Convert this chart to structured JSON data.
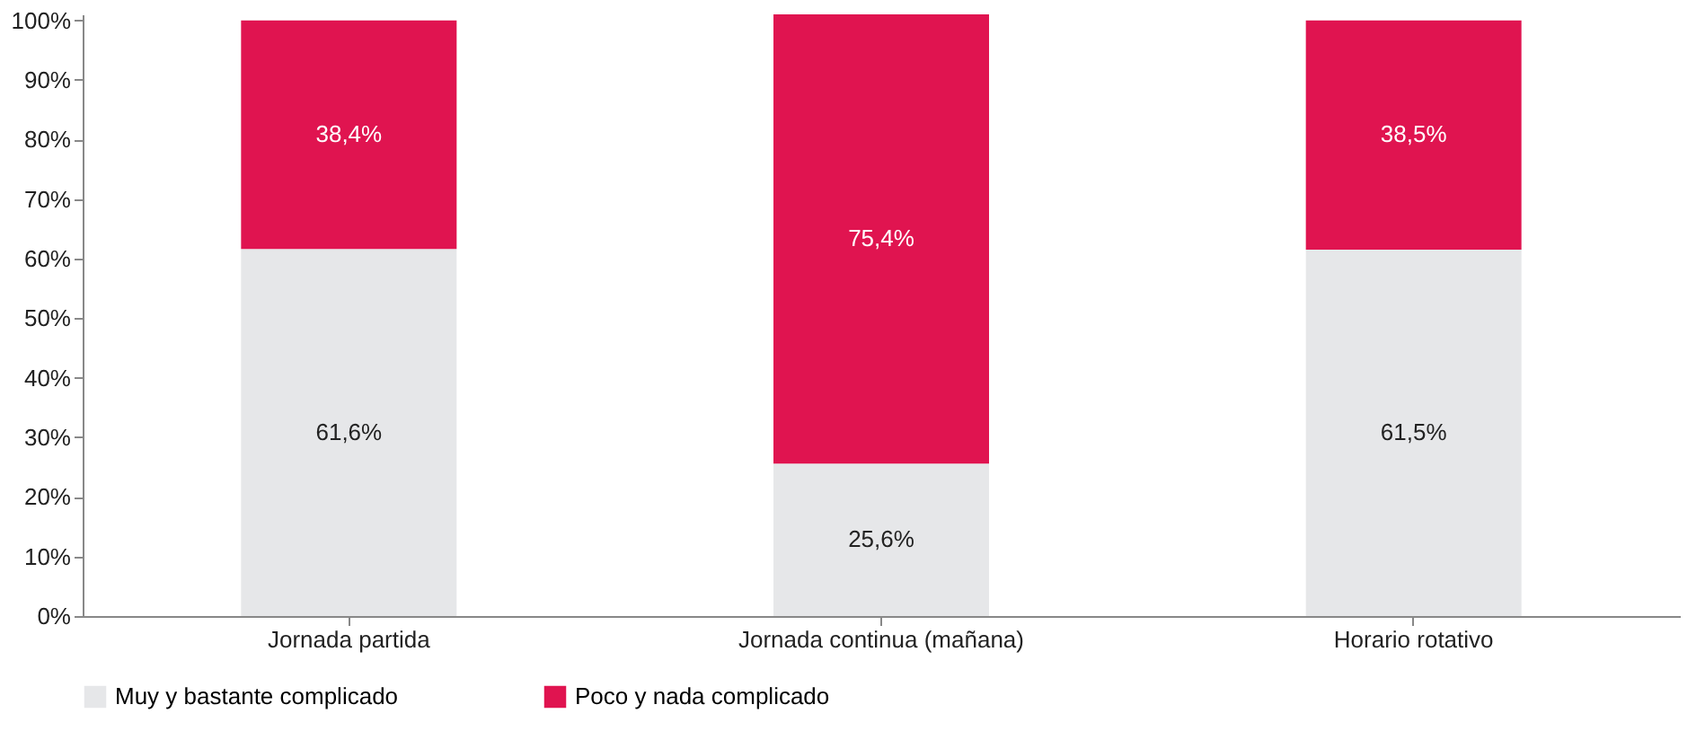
{
  "chart_data": {
    "type": "bar",
    "stacked": true,
    "categories": [
      "Jornada partida",
      "Jornada continua (mañana)",
      "Horario rotativo"
    ],
    "series": [
      {
        "name": "Muy y bastante complicado",
        "color": "#e6e7e9",
        "values": [
          61.6,
          25.6,
          61.5
        ],
        "value_labels": [
          "61,6%",
          "25,6%",
          "61,5%"
        ]
      },
      {
        "name": "Poco y nada complicado",
        "color": "#e01450",
        "values": [
          38.4,
          75.4,
          38.5
        ],
        "value_labels": [
          "38,4%",
          "75,4%",
          "38,5%"
        ]
      }
    ],
    "ylim": [
      0,
      101
    ],
    "yticks": [
      {
        "value": 0,
        "label": "0%"
      },
      {
        "value": 10,
        "label": "10%"
      },
      {
        "value": 20,
        "label": "20%"
      },
      {
        "value": 30,
        "label": "30%"
      },
      {
        "value": 40,
        "label": "40%"
      },
      {
        "value": 50,
        "label": "50%"
      },
      {
        "value": 60,
        "label": "60%"
      },
      {
        "value": 70,
        "label": "70%"
      },
      {
        "value": 80,
        "label": "80%"
      },
      {
        "value": 90,
        "label": "90%"
      },
      {
        "value": 100,
        "label": "100%"
      }
    ],
    "grid": false,
    "legend": "bottom"
  }
}
